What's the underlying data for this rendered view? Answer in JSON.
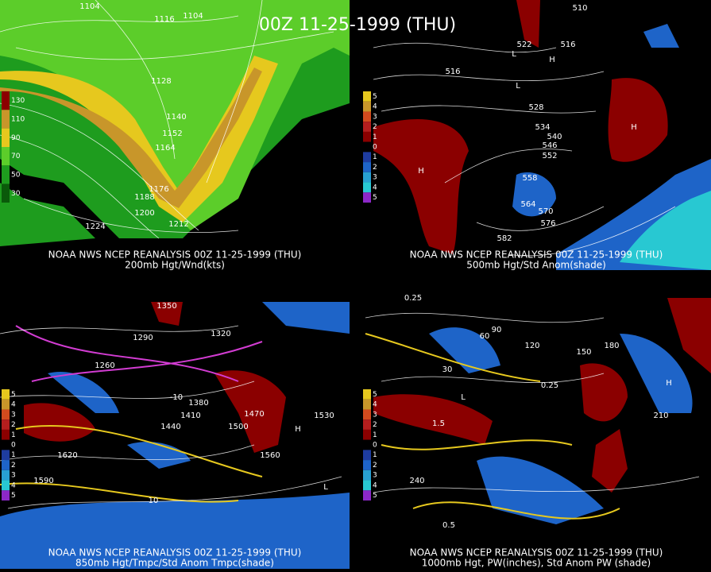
{
  "title": "00Z 11-25-1999 (THU)",
  "panels": [
    {
      "source": "NOAA NWS NCEP REANALYSIS 00Z 11-25-1999 (THU)",
      "caption": "200mb Hgt/Wnd(kts)",
      "colorbar_labels": [
        "130",
        "110",
        "90",
        "70",
        "50",
        "30"
      ],
      "contour_labels": [
        "1104",
        "1116",
        "1104",
        "1128",
        "1140",
        "1152",
        "1164",
        "1176",
        "1188",
        "1200",
        "1212",
        "1224"
      ]
    },
    {
      "source": "NOAA NWS NCEP REANALYSIS 00Z 11-25-1999 (THU)",
      "caption": "500mb Hgt/Std Anom(shade)",
      "colorbar_labels": [
        "5",
        "4",
        "3",
        "2",
        "1",
        "0",
        "1",
        "2",
        "3",
        "4",
        "5"
      ],
      "contour_labels": [
        "510",
        "516",
        "522",
        "516",
        "528",
        "534",
        "540",
        "546",
        "552",
        "558",
        "564",
        "570",
        "576",
        "582",
        "H",
        "H",
        "H",
        "L",
        "L"
      ]
    },
    {
      "source": "NOAA NWS NCEP REANALYSIS 00Z 11-25-1999 (THU)",
      "caption": "850mb Hgt/Tmpc/Std Anom Tmpc(shade)",
      "colorbar_labels": [
        "5",
        "4",
        "3",
        "2",
        "1",
        "0",
        "1",
        "2",
        "3",
        "4",
        "5"
      ],
      "contour_labels": [
        "1290",
        "1320",
        "1350",
        "1380",
        "1410",
        "1440",
        "1470",
        "1500",
        "1530",
        "1560",
        "1590",
        "1620",
        "1260",
        "-10",
        "10",
        "H",
        "L"
      ]
    },
    {
      "source": "NOAA NWS NCEP REANALYSIS 00Z 11-25-1999 (THU)",
      "caption": "1000mb Hgt, PW(inches), Std Anom PW (shade)",
      "colorbar_labels": [
        "5",
        "4",
        "3",
        "2",
        "1",
        "0",
        "1",
        "2",
        "3",
        "4",
        "5"
      ],
      "contour_labels": [
        "0.25",
        "60",
        "90",
        "120",
        "150",
        "180",
        "210",
        "240",
        "30",
        "1.5",
        "0.5",
        "0.25",
        "H",
        "L"
      ]
    }
  ]
}
